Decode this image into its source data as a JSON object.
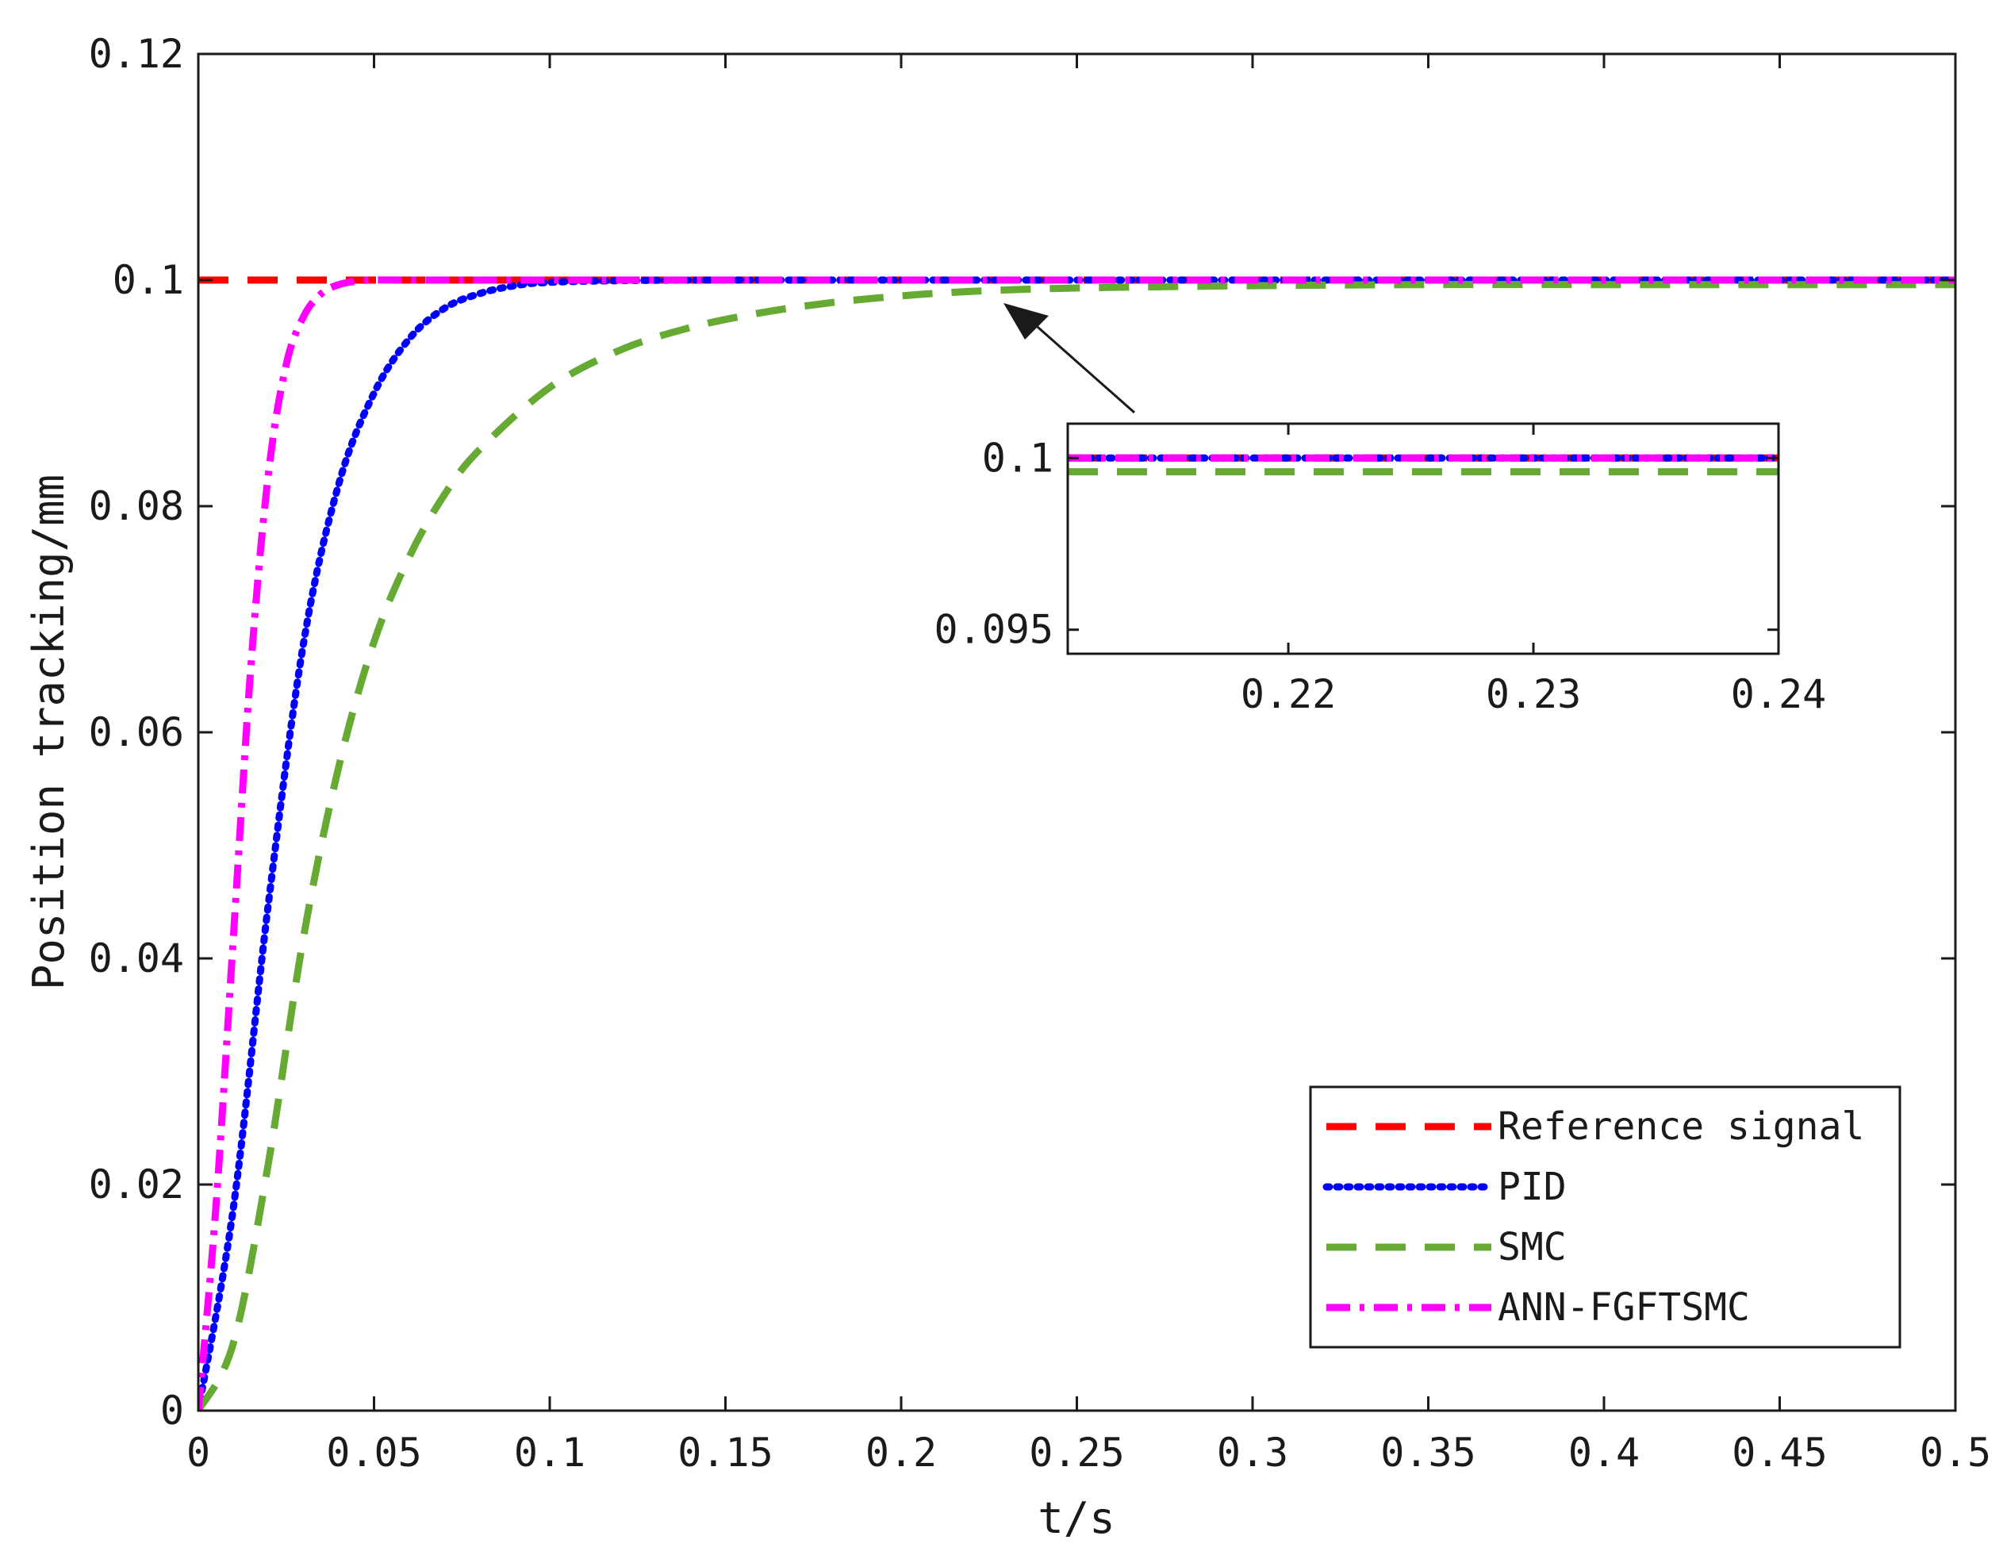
{
  "chart_data": {
    "type": "line",
    "title": "",
    "xlabel": "t/s",
    "ylabel": "Position tracking/mm",
    "xlim": [
      0,
      0.5
    ],
    "ylim": [
      0,
      0.12
    ],
    "xticks": [
      "0",
      "0.05",
      "0.1",
      "0.15",
      "0.2",
      "0.25",
      "0.3",
      "0.35",
      "0.4",
      "0.45",
      "0.5"
    ],
    "yticks": [
      "0",
      "0.02",
      "0.04",
      "0.06",
      "0.08",
      "0.1",
      "0.12"
    ],
    "grid": false,
    "legend_position": "bottom-right",
    "series": [
      {
        "name": "Reference signal",
        "color": "#ff0000",
        "style": "dashed",
        "x": [
          0,
          0.5
        ],
        "y": [
          0.1,
          0.1
        ]
      },
      {
        "name": "PID",
        "color": "#0000ff",
        "style": "dotted",
        "x": [
          0,
          0.01,
          0.02,
          0.03,
          0.04,
          0.05,
          0.06,
          0.07,
          0.08,
          0.09,
          0.1,
          0.12,
          0.15,
          0.2,
          0.3,
          0.4,
          0.5
        ],
        "y": [
          0,
          0.018,
          0.045,
          0.068,
          0.082,
          0.09,
          0.0948,
          0.0975,
          0.0988,
          0.0995,
          0.0998,
          0.09995,
          0.1,
          0.1,
          0.1,
          0.1,
          0.1
        ]
      },
      {
        "name": "SMC",
        "color": "#66aa33",
        "style": "dashed",
        "x": [
          0,
          0.01,
          0.02,
          0.03,
          0.04,
          0.05,
          0.06,
          0.07,
          0.08,
          0.1,
          0.12,
          0.14,
          0.16,
          0.18,
          0.2,
          0.22,
          0.25,
          0.3,
          0.35,
          0.4,
          0.45,
          0.5
        ],
        "y": [
          0,
          0.006,
          0.022,
          0.042,
          0.057,
          0.068,
          0.0755,
          0.081,
          0.085,
          0.0905,
          0.0938,
          0.0958,
          0.0971,
          0.098,
          0.0986,
          0.099,
          0.0993,
          0.0995,
          0.0996,
          0.0996,
          0.0996,
          0.0996
        ]
      },
      {
        "name": "ANN-FGFTSMC",
        "color": "#ff00ff",
        "style": "dashdot",
        "x": [
          0,
          0.005,
          0.01,
          0.015,
          0.02,
          0.025,
          0.03,
          0.035,
          0.04,
          0.045,
          0.05,
          0.06,
          0.08,
          0.1,
          0.2,
          0.3,
          0.4,
          0.5
        ],
        "y": [
          0,
          0.018,
          0.042,
          0.066,
          0.083,
          0.0925,
          0.0968,
          0.0988,
          0.0996,
          0.0999,
          0.1,
          0.1,
          0.1,
          0.1,
          0.1,
          0.1,
          0.1,
          0.1
        ]
      }
    ],
    "inset": {
      "xlim": [
        0.211,
        0.24
      ],
      "ylim": [
        0.0943,
        0.101
      ],
      "xticks": [
        "0.22",
        "0.23",
        "0.24"
      ],
      "yticks": [
        "0.095",
        "0.1"
      ],
      "series": [
        {
          "name": "Reference signal",
          "y": 0.1
        },
        {
          "name": "PID",
          "y": 0.1
        },
        {
          "name": "SMC",
          "y": 0.0996
        },
        {
          "name": "ANN-FGFTSMC",
          "y": 0.1
        }
      ]
    }
  }
}
